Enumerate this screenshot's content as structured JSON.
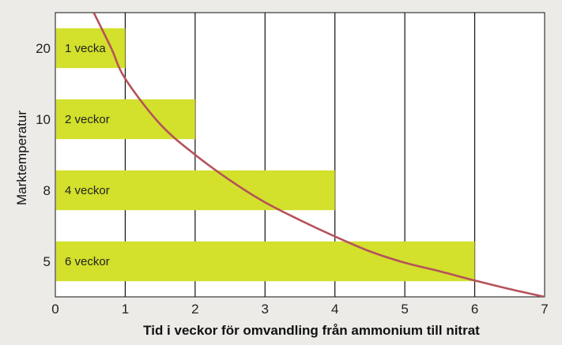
{
  "chart_data": {
    "type": "bar",
    "orientation": "horizontal",
    "xlabel": "Tid i veckor för omvandling från ammonium till nitrat",
    "ylabel": "Marktemperatur",
    "xlim": [
      0,
      7
    ],
    "x_ticks": [
      "0",
      "1",
      "2",
      "3",
      "4",
      "5",
      "6",
      "7"
    ],
    "grid": "vertical",
    "categories": [
      "20",
      "10",
      "8",
      "5"
    ],
    "values": [
      1,
      2,
      4,
      6
    ],
    "bar_labels": [
      "1 vecka",
      "2 veckor",
      "4 veckor",
      "6 veckor"
    ],
    "curve": {
      "x": [
        0.55,
        0.8,
        1.0,
        1.5,
        2.0,
        2.5,
        3.0,
        3.5,
        4.0,
        4.5,
        5.0,
        5.5,
        6.0,
        6.5,
        7.0
      ],
      "y": [
        4.0,
        3.5,
        3.07,
        2.43,
        2.0,
        1.64,
        1.33,
        1.08,
        0.85,
        0.64,
        0.48,
        0.36,
        0.23,
        0.11,
        0.0
      ]
    },
    "colors": {
      "bar": "#d3e02c",
      "curve": "#b5525a",
      "grid": "#111111",
      "background": "#ffffff"
    }
  }
}
